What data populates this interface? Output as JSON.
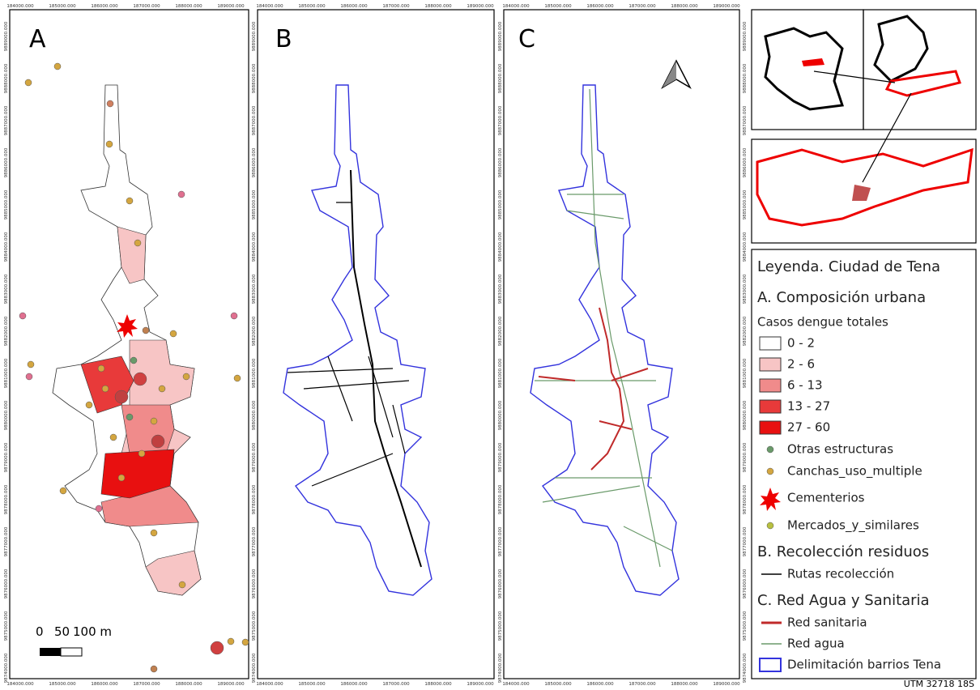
{
  "panels": [
    {
      "label": "A"
    },
    {
      "label": "B"
    },
    {
      "label": "C"
    }
  ],
  "x_tick_labels": [
    "184000.000",
    "185000.000",
    "186000.000",
    "187000.000",
    "188000.000",
    "189000.000"
  ],
  "y_tick_labels": [
    "9889000.000",
    "9888000.000",
    "9887000.000",
    "9886000.000",
    "9885000.000",
    "9884000.000",
    "9883000.000",
    "9882000.000",
    "9881000.000",
    "9880000.000",
    "9879000.000",
    "9878000.000",
    "9877000.000",
    "9876000.000",
    "9875000.000",
    "9874000.000"
  ],
  "scale_bar": {
    "labels": [
      "0",
      "50",
      "100 m"
    ]
  },
  "legend": {
    "title": "Leyenda. Ciudad de Tena",
    "section_a": "A. Composición urbana",
    "subtitle_a": "Casos dengue totales",
    "classes": [
      "0 - 2",
      "2 - 6",
      "6 - 13",
      "13 - 27",
      "27 - 60"
    ],
    "points": [
      "Otras estructuras",
      "Canchas_uso_multiple",
      "Cementerios",
      "Mercados_y_similares"
    ],
    "section_b": "B. Recolección residuos",
    "routes": "Rutas recolección",
    "section_c": "C. Red Agua y Sanitaria",
    "sanitary": "Red sanitaria",
    "water": "Red agua",
    "barrios": "Delimitación barrios Tena"
  },
  "crs": "UTM 32718 18S"
}
